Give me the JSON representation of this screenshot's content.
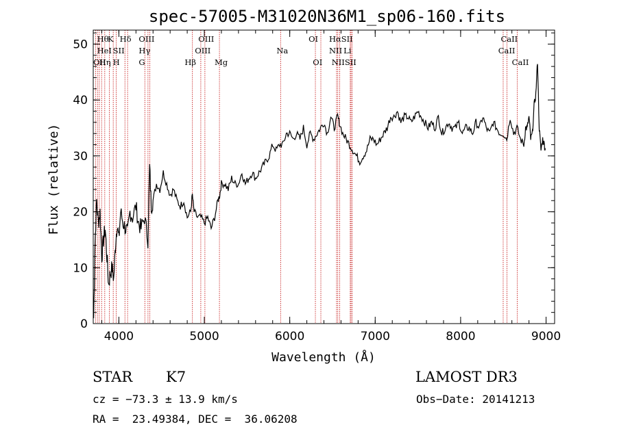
{
  "chart_data": {
    "type": "line",
    "title": "spec-57005-M31020N36M1_sp06-160.fits",
    "xlabel": "Wavelength (Å)",
    "ylabel": "Flux (relative)",
    "xlim": [
      3700,
      9100
    ],
    "ylim": [
      0,
      52.5
    ],
    "xticks": [
      "4000",
      "5000",
      "6000",
      "7000",
      "8000",
      "9000"
    ],
    "yticks": [
      "0",
      "10",
      "20",
      "30",
      "40",
      "50"
    ],
    "grid": false,
    "series": [
      {
        "x": [
          3705,
          3720,
          3740,
          3760,
          3780,
          3800,
          3820,
          3840,
          3860,
          3880,
          3900,
          3920,
          3940,
          3960,
          3980,
          4000,
          4020,
          4050,
          4080,
          4100,
          4130,
          4160,
          4200,
          4230,
          4260,
          4300,
          4340,
          4360,
          4380,
          4400,
          4440,
          4480,
          4520,
          4560,
          4600,
          4640,
          4680,
          4720,
          4760,
          4800,
          4840,
          4860,
          4880,
          4920,
          4960,
          5000,
          5040,
          5080,
          5120,
          5160,
          5180,
          5200,
          5240,
          5280,
          5320,
          5360,
          5400,
          5440,
          5480,
          5520,
          5560,
          5600,
          5640,
          5680,
          5720,
          5760,
          5800,
          5840,
          5880,
          5920,
          5960,
          6000,
          6040,
          6080,
          6120,
          6160,
          6200,
          6240,
          6280,
          6320,
          6360,
          6400,
          6440,
          6480,
          6520,
          6560,
          6580,
          6620,
          6660,
          6700,
          6740,
          6780,
          6820,
          6860,
          6900,
          6940,
          6980,
          7020,
          7060,
          7100,
          7140,
          7180,
          7220,
          7260,
          7300,
          7340,
          7380,
          7420,
          7460,
          7500,
          7540,
          7580,
          7620,
          7660,
          7700,
          7740,
          7780,
          7820,
          7860,
          7900,
          7940,
          7980,
          8020,
          8060,
          8100,
          8140,
          8180,
          8220,
          8260,
          8300,
          8340,
          8380,
          8420,
          8460,
          8500,
          8540,
          8580,
          8620,
          8660,
          8700,
          8740,
          8760,
          8780,
          8800,
          8820,
          8840,
          8860,
          8880,
          8900,
          8920,
          8940,
          8960,
          8980,
          8990
        ],
        "values": [
          1,
          14,
          22,
          18,
          20,
          12,
          15,
          17,
          12,
          7,
          9,
          10,
          8,
          14,
          18,
          15,
          20,
          18,
          17,
          16,
          20,
          19,
          21,
          18,
          17,
          19,
          15,
          28,
          21,
          22,
          25,
          24,
          27,
          25,
          23,
          24,
          22,
          21,
          22,
          19,
          20,
          23,
          20,
          19,
          19,
          18,
          19,
          17,
          19,
          22,
          23,
          25,
          25,
          24,
          26,
          25,
          25,
          27,
          25,
          26,
          27,
          26,
          27,
          28,
          29,
          30,
          32,
          31,
          32,
          32,
          34,
          34,
          33,
          34,
          33,
          35,
          32,
          34,
          33,
          34,
          35,
          36,
          34,
          37,
          35,
          37,
          36,
          34,
          33,
          32,
          31,
          30,
          29,
          30,
          31,
          33,
          33,
          32,
          33,
          34,
          35,
          37,
          37,
          38,
          36,
          37,
          37,
          36,
          37,
          38,
          37,
          36,
          35,
          36,
          35,
          37,
          34,
          35,
          36,
          35,
          35,
          36,
          34,
          35,
          35,
          34,
          36,
          35,
          37,
          35,
          34,
          36,
          35,
          34,
          34,
          33,
          37,
          34,
          35,
          33,
          32,
          35,
          35,
          37,
          33,
          34,
          39,
          41,
          47,
          35,
          31,
          33,
          32,
          31
        ]
      }
    ],
    "line_markers": [
      {
        "x": 3727,
        "label": "OII"
      },
      {
        "x": 3750,
        "label": ""
      },
      {
        "x": 3771,
        "label": ""
      },
      {
        "x": 3798,
        "label": ""
      },
      {
        "x": 3835,
        "label": "Hθ"
      },
      {
        "x": 3889,
        "label": "HeI"
      },
      {
        "x": 3934,
        "label": "K"
      },
      {
        "x": 3969,
        "label": "H"
      },
      {
        "x": 4071,
        "label": "SII"
      },
      {
        "x": 4102,
        "label": "Hδ"
      },
      {
        "x": 4304,
        "label": "G"
      },
      {
        "x": 4341,
        "label": "Hγ"
      },
      {
        "x": 4363,
        "label": "OIII"
      },
      {
        "x": 4861,
        "label": "Hβ"
      },
      {
        "x": 4959,
        "label": "OIII"
      },
      {
        "x": 5007,
        "label": "OIII"
      },
      {
        "x": 5177,
        "label": "Mg"
      },
      {
        "x": 5893,
        "label": "Na"
      },
      {
        "x": 6300,
        "label": "OI"
      },
      {
        "x": 6364,
        "label": "OI"
      },
      {
        "x": 6548,
        "label": "NII"
      },
      {
        "x": 6563,
        "label": "Hα"
      },
      {
        "x": 6584,
        "label": "NII"
      },
      {
        "x": 6708,
        "label": "Li"
      },
      {
        "x": 6717,
        "label": "SII"
      },
      {
        "x": 6731,
        "label": "SII"
      },
      {
        "x": 8498,
        "label": "CaII"
      },
      {
        "x": 8542,
        "label": "CaII"
      },
      {
        "x": 8662,
        "label": "CaII"
      }
    ],
    "annotations": [
      {
        "text": "Hθ",
        "x": 3745,
        "row": 1
      },
      {
        "text": "K",
        "x": 3868,
        "row": 1
      },
      {
        "text": "Hδ",
        "x": 4010,
        "row": 1
      },
      {
        "text": "OIII",
        "x": 4233,
        "row": 1
      },
      {
        "text": "OIII",
        "x": 4930,
        "row": 1
      },
      {
        "text": "OI",
        "x": 6220,
        "row": 1
      },
      {
        "text": "HαSII",
        "x": 6460,
        "row": 1
      },
      {
        "text": "CaII",
        "x": 8470,
        "row": 1
      },
      {
        "text": "HeI",
        "x": 3745,
        "row": 2
      },
      {
        "text": "SII",
        "x": 3930,
        "row": 2
      },
      {
        "text": "Hγ",
        "x": 4233,
        "row": 2
      },
      {
        "text": "OIII",
        "x": 4890,
        "row": 2
      },
      {
        "text": "Na",
        "x": 5845,
        "row": 2
      },
      {
        "text": "NII",
        "x": 6460,
        "row": 2
      },
      {
        "text": "Li",
        "x": 6630,
        "row": 2
      },
      {
        "text": "CaII",
        "x": 8440,
        "row": 2
      },
      {
        "text": "OII",
        "x": 3700,
        "row": 3
      },
      {
        "text": "Hη",
        "x": 3770,
        "row": 3
      },
      {
        "text": "H",
        "x": 3930,
        "row": 3
      },
      {
        "text": "G",
        "x": 4233,
        "row": 3
      },
      {
        "text": "Hβ",
        "x": 4770,
        "row": 3
      },
      {
        "text": "Mg",
        "x": 5120,
        "row": 3
      },
      {
        "text": "OI",
        "x": 6270,
        "row": 3
      },
      {
        "text": "NIISII",
        "x": 6490,
        "row": 3
      },
      {
        "text": "CaII",
        "x": 8600,
        "row": 3
      }
    ],
    "colors": {
      "spectrum": "#000000",
      "markers": "#c00000",
      "frame": "#000000"
    }
  },
  "info": {
    "object_type": "STAR",
    "subclass": "K7",
    "survey": "LAMOST DR3",
    "cz": "cz = −73.3 ± 13.9 km/s",
    "obs_date": "Obs−Date: 20141213",
    "radec": "RA =  23.49384, DEC =  36.06208"
  }
}
